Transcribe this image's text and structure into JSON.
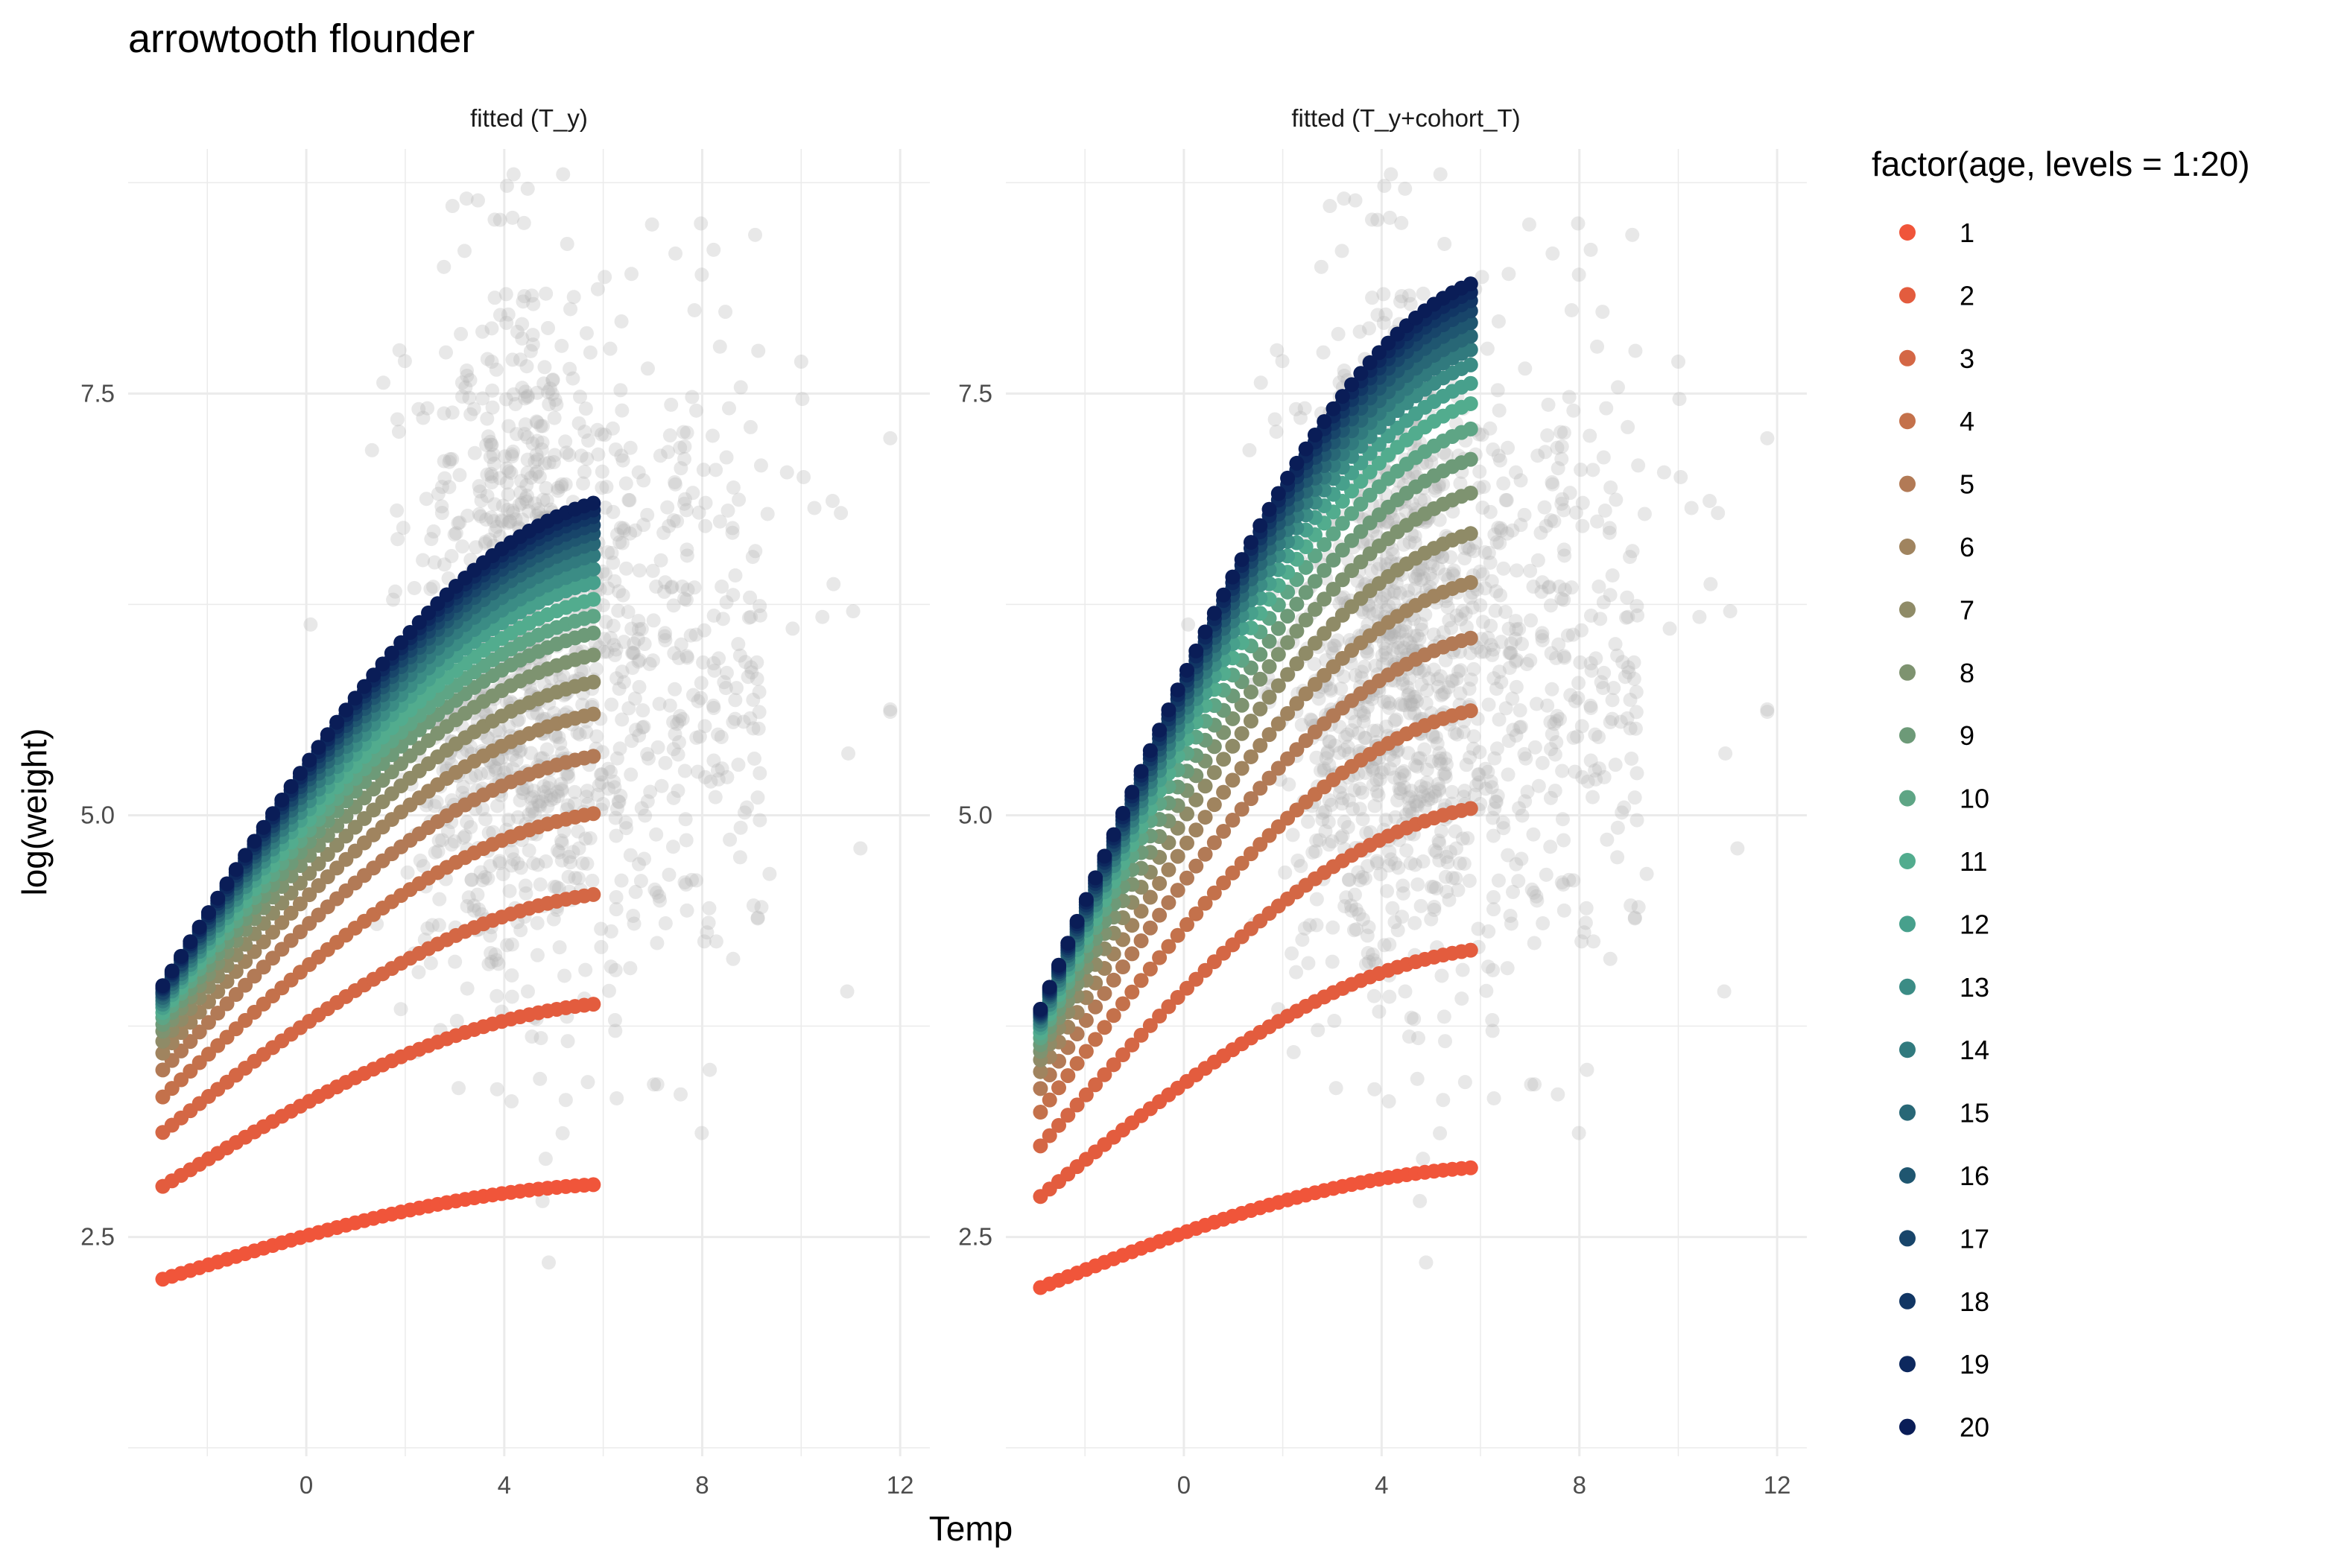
{
  "chart_data": {
    "type": "scatter",
    "title": "arrowtooth flounder",
    "xlabel": "Temp",
    "ylabel": "log(weight)",
    "xlim": [
      -3.6,
      12.6
    ],
    "ylim": [
      1.2,
      8.95
    ],
    "x_ticks": [
      0,
      4,
      8,
      12
    ],
    "x_tick_labels": [
      "0",
      "4",
      "8",
      "12"
    ],
    "y_ticks": [
      2.5,
      5.0,
      7.5
    ],
    "y_tick_labels": [
      "2.5",
      "5.0",
      "7.5"
    ],
    "x_minor": [
      -2,
      2,
      6,
      10
    ],
    "y_minor": [
      1.25,
      3.75,
      6.25,
      8.75
    ],
    "grid": true,
    "legend": {
      "title": "factor(age, levels = 1:20)",
      "position": "right",
      "entries": [
        "1",
        "2",
        "3",
        "4",
        "5",
        "6",
        "7",
        "8",
        "9",
        "10",
        "11",
        "12",
        "13",
        "14",
        "15",
        "16",
        "17",
        "18",
        "19",
        "20"
      ],
      "colors": [
        "#f0553a",
        "#e35c3e",
        "#d46745",
        "#c4714b",
        "#b27a56",
        "#a0845f",
        "#8f8b67",
        "#7e9370",
        "#6d9a78",
        "#5ea585",
        "#52ac8e",
        "#47a08c",
        "#3b8c85",
        "#317a7e",
        "#286776",
        "#1f5670",
        "#18456a",
        "#113664",
        "#0d285e",
        "#0a1d57"
      ]
    },
    "background_points": {
      "name": "observed",
      "color": "#b3b3b3",
      "x_range": [
        -0.3,
        11.8
      ],
      "y_range": [
        1.4,
        8.8
      ],
      "description_hidden": false
    },
    "panels": [
      {
        "label": "fitted (T_y)",
        "x_range": [
          -2.9,
          5.8
        ],
        "series": [
          {
            "name": "1",
            "y_start": 2.25,
            "y_end": 2.81
          },
          {
            "name": "2",
            "y_start": 2.8,
            "y_end": 3.88
          },
          {
            "name": "3",
            "y_start": 3.12,
            "y_end": 4.53
          },
          {
            "name": "4",
            "y_start": 3.33,
            "y_end": 5.01
          },
          {
            "name": "5",
            "y_start": 3.49,
            "y_end": 5.35
          },
          {
            "name": "6",
            "y_start": 3.59,
            "y_end": 5.6
          },
          {
            "name": "7",
            "y_start": 3.66,
            "y_end": 5.79
          },
          {
            "name": "8",
            "y_start": 3.72,
            "y_end": 5.95
          },
          {
            "name": "9",
            "y_start": 3.76,
            "y_end": 6.08
          },
          {
            "name": "10",
            "y_start": 3.8,
            "y_end": 6.18
          },
          {
            "name": "11",
            "y_start": 3.83,
            "y_end": 6.28
          },
          {
            "name": "12",
            "y_start": 3.86,
            "y_end": 6.38
          },
          {
            "name": "13",
            "y_start": 3.88,
            "y_end": 6.46
          },
          {
            "name": "14",
            "y_start": 3.9,
            "y_end": 6.54
          },
          {
            "name": "15",
            "y_start": 3.92,
            "y_end": 6.61
          },
          {
            "name": "16",
            "y_start": 3.94,
            "y_end": 6.67
          },
          {
            "name": "17",
            "y_start": 3.95,
            "y_end": 6.72
          },
          {
            "name": "18",
            "y_start": 3.97,
            "y_end": 6.77
          },
          {
            "name": "19",
            "y_start": 3.98,
            "y_end": 6.81
          },
          {
            "name": "20",
            "y_start": 3.99,
            "y_end": 6.85
          }
        ]
      },
      {
        "label": "fitted (T_y+cohort_T)",
        "x_range": [
          -2.9,
          5.8
        ],
        "series": [
          {
            "name": "1",
            "y_start": 2.2,
            "y_end": 2.91
          },
          {
            "name": "2",
            "y_start": 2.74,
            "y_end": 4.2
          },
          {
            "name": "3",
            "y_start": 3.04,
            "y_end": 5.04
          },
          {
            "name": "4",
            "y_start": 3.24,
            "y_end": 5.62
          },
          {
            "name": "5",
            "y_start": 3.38,
            "y_end": 6.05
          },
          {
            "name": "6",
            "y_start": 3.48,
            "y_end": 6.38
          },
          {
            "name": "7",
            "y_start": 3.55,
            "y_end": 6.67
          },
          {
            "name": "8",
            "y_start": 3.6,
            "y_end": 6.91
          },
          {
            "name": "9",
            "y_start": 3.64,
            "y_end": 7.11
          },
          {
            "name": "10",
            "y_start": 3.68,
            "y_end": 7.29
          },
          {
            "name": "11",
            "y_start": 3.71,
            "y_end": 7.44
          },
          {
            "name": "12",
            "y_start": 3.74,
            "y_end": 7.56
          },
          {
            "name": "13",
            "y_start": 3.76,
            "y_end": 7.67
          },
          {
            "name": "14",
            "y_start": 3.78,
            "y_end": 7.76
          },
          {
            "name": "15",
            "y_start": 3.8,
            "y_end": 7.84
          },
          {
            "name": "16",
            "y_start": 3.81,
            "y_end": 7.92
          },
          {
            "name": "17",
            "y_start": 3.82,
            "y_end": 7.99
          },
          {
            "name": "18",
            "y_start": 3.83,
            "y_end": 8.05
          },
          {
            "name": "19",
            "y_start": 3.84,
            "y_end": 8.1
          },
          {
            "name": "20",
            "y_start": 3.85,
            "y_end": 8.15
          }
        ]
      }
    ]
  }
}
